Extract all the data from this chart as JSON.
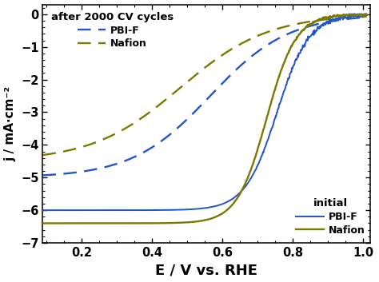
{
  "xlabel": "E / V vs. RHE",
  "ylabel": "j / mA·cm⁻²",
  "xlim": [
    0.09,
    1.02
  ],
  "ylim": [
    -7,
    0.3
  ],
  "yticks": [
    0,
    -1,
    -2,
    -3,
    -4,
    -5,
    -6,
    -7
  ],
  "xticks": [
    0.2,
    0.4,
    0.6,
    0.8,
    1.0
  ],
  "blue_color": "#2255CC",
  "olive_color": "#7A7A00",
  "legend1_title": "after 2000 CV cycles",
  "legend2_title": "initial"
}
